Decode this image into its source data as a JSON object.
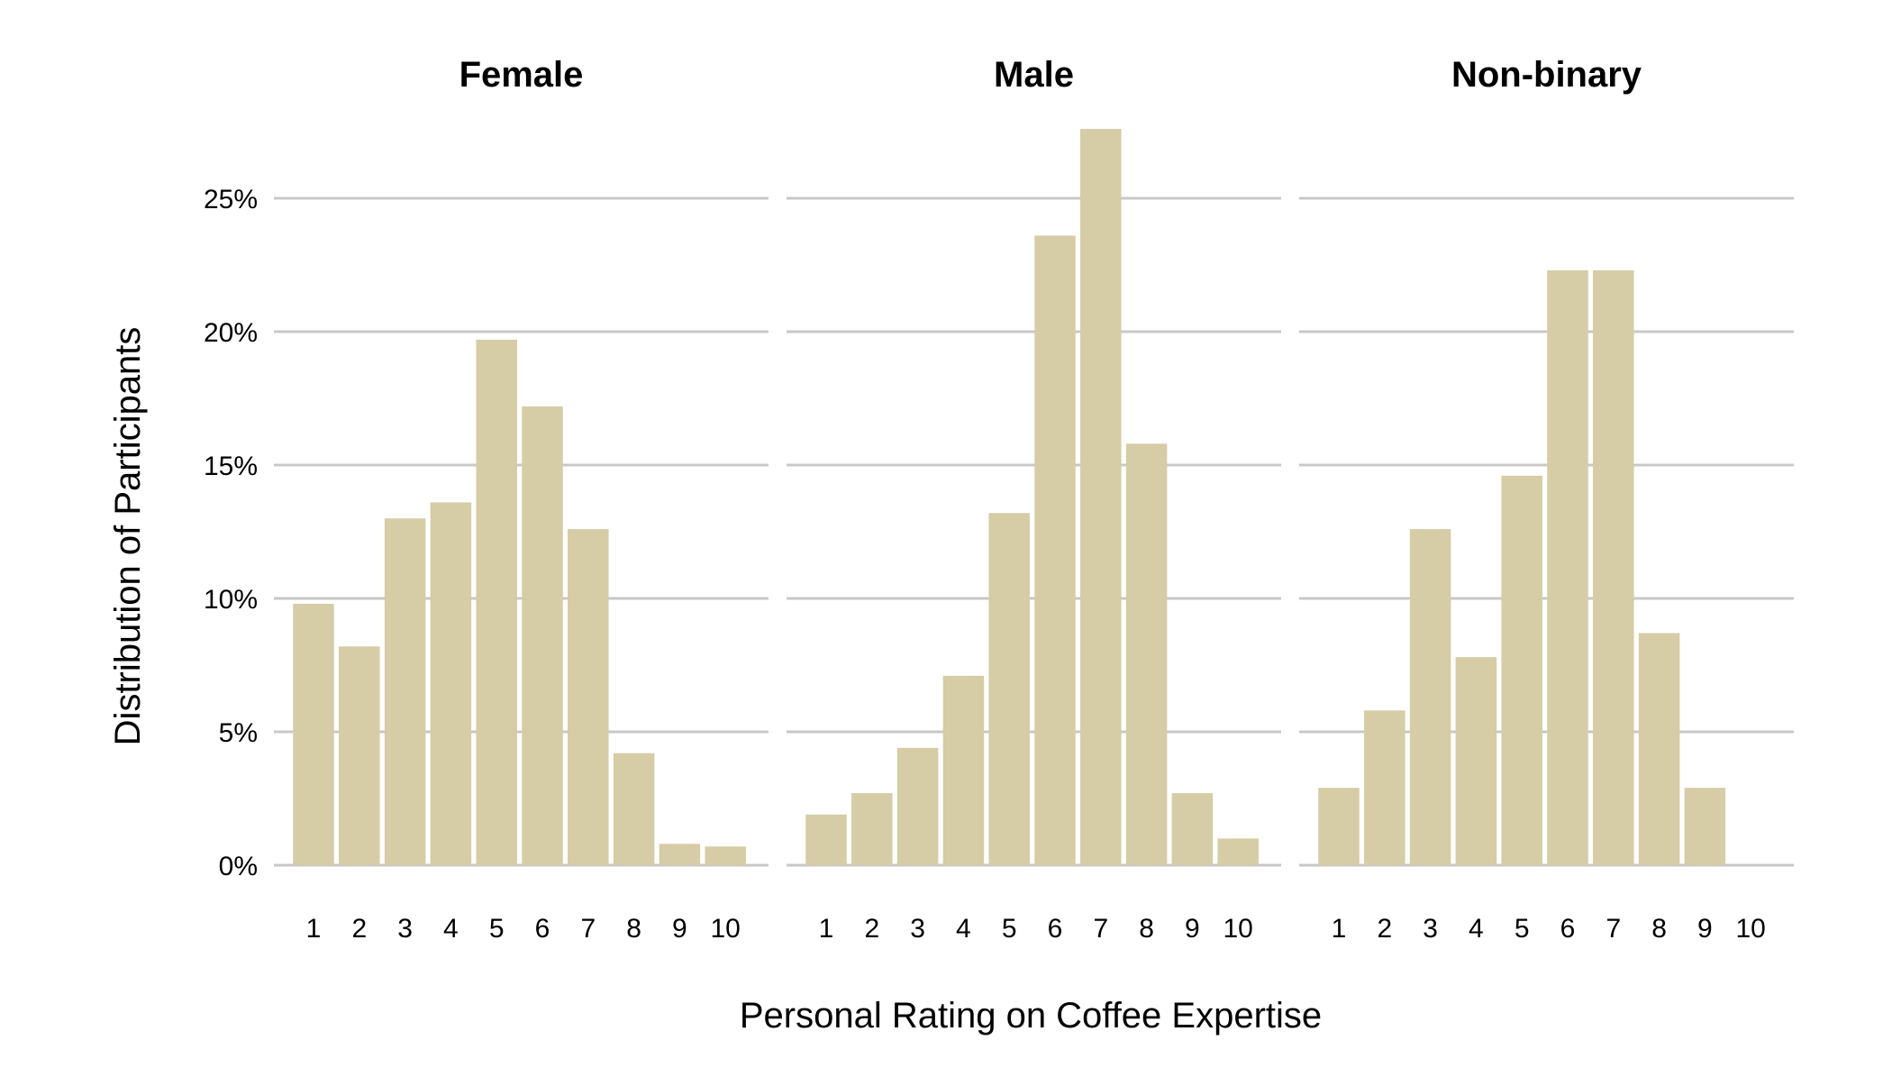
{
  "chart_data": {
    "type": "bar",
    "xlabel": "Personal Rating on Coffee Expertise",
    "ylabel": "Distribution of Participants",
    "y_unit": "%",
    "ylim": [
      0,
      27.6
    ],
    "yticks": [
      0,
      5,
      10,
      15,
      20,
      25
    ],
    "ytick_labels": [
      "0%",
      "5%",
      "10%",
      "15%",
      "20%",
      "25%"
    ],
    "categories": [
      "1",
      "2",
      "3",
      "4",
      "5",
      "6",
      "7",
      "8",
      "9",
      "10"
    ],
    "grid": true,
    "bar_color": "#d6cca5",
    "facets": [
      {
        "title": "Female",
        "values": [
          9.8,
          8.2,
          13.0,
          13.6,
          19.7,
          17.2,
          12.6,
          4.2,
          0.8,
          0.7
        ]
      },
      {
        "title": "Male",
        "values": [
          1.9,
          2.7,
          4.4,
          7.1,
          13.2,
          23.6,
          27.6,
          15.8,
          2.7,
          1.0
        ]
      },
      {
        "title": "Non-binary",
        "values": [
          2.9,
          5.8,
          12.6,
          7.8,
          14.6,
          22.3,
          22.3,
          8.7,
          2.9,
          0
        ]
      }
    ]
  }
}
